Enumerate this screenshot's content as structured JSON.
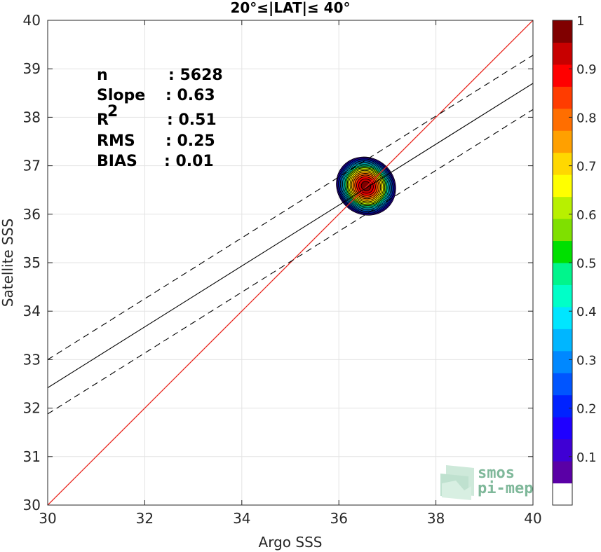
{
  "chart_data": {
    "type": "scatter",
    "title": "20°≤|LAT|≤ 40°",
    "xlabel": "Argo SSS",
    "ylabel": "Satellite SSS",
    "xlim": [
      30,
      40
    ],
    "ylim": [
      30,
      40
    ],
    "x_ticks": [
      "30",
      "32",
      "34",
      "36",
      "38",
      "40"
    ],
    "y_ticks": [
      "30",
      "31",
      "32",
      "33",
      "34",
      "35",
      "36",
      "37",
      "38",
      "39",
      "40"
    ],
    "grid": true,
    "stats": [
      {
        "label": "n",
        "value": ": 5628"
      },
      {
        "label": "Slope",
        "value": ": 0.63"
      },
      {
        "label": "R",
        "sup": "2",
        "value": ": 0.51"
      },
      {
        "label": "RMS",
        "value": ": 0.25"
      },
      {
        "label": "BIAS",
        "value": ": 0.01"
      }
    ],
    "lines": {
      "identity": {
        "slope": 1,
        "intercept": 0,
        "color": "#e8221a"
      },
      "fit": {
        "slope": 0.628,
        "intercept_at_30": 32.42,
        "color": "#000000"
      },
      "fit_upper": {
        "slope": 0.628,
        "intercept_at_30": 33.0,
        "style": "dashed"
      },
      "fit_lower": {
        "slope": 0.628,
        "intercept_at_30": 31.88,
        "style": "dashed"
      }
    },
    "density": {
      "center": [
        36.56,
        36.58
      ],
      "outer_extent_x": [
        36.0,
        37.2
      ],
      "outer_extent_y": [
        35.9,
        37.2
      ],
      "levels": [
        0.05,
        0.1,
        0.15,
        0.2,
        0.25,
        0.3,
        0.35,
        0.4,
        0.45,
        0.5,
        0.55,
        0.6,
        0.65,
        0.7,
        0.75,
        0.8,
        0.85,
        0.9,
        0.95
      ]
    },
    "colorbar": {
      "ticks": [
        "0.1",
        "0.2",
        "0.3",
        "0.4",
        "0.5",
        "0.6",
        "0.7",
        "0.8",
        "0.9",
        "1"
      ],
      "range": [
        0,
        1
      ],
      "colors": [
        "#ffffff",
        "#5a00a6",
        "#3f00d4",
        "#1f00ff",
        "#0022ff",
        "#0055ff",
        "#0088ff",
        "#00b6ff",
        "#00e6ff",
        "#00ffc8",
        "#00f58c",
        "#00e000",
        "#7fe000",
        "#b8f000",
        "#ffff00",
        "#ffd800",
        "#ffa000",
        "#ff6e00",
        "#ff3c00",
        "#ff0000",
        "#c80000",
        "#800000"
      ]
    }
  },
  "logo": {
    "line1": "smos",
    "line2": "pi-mep"
  }
}
